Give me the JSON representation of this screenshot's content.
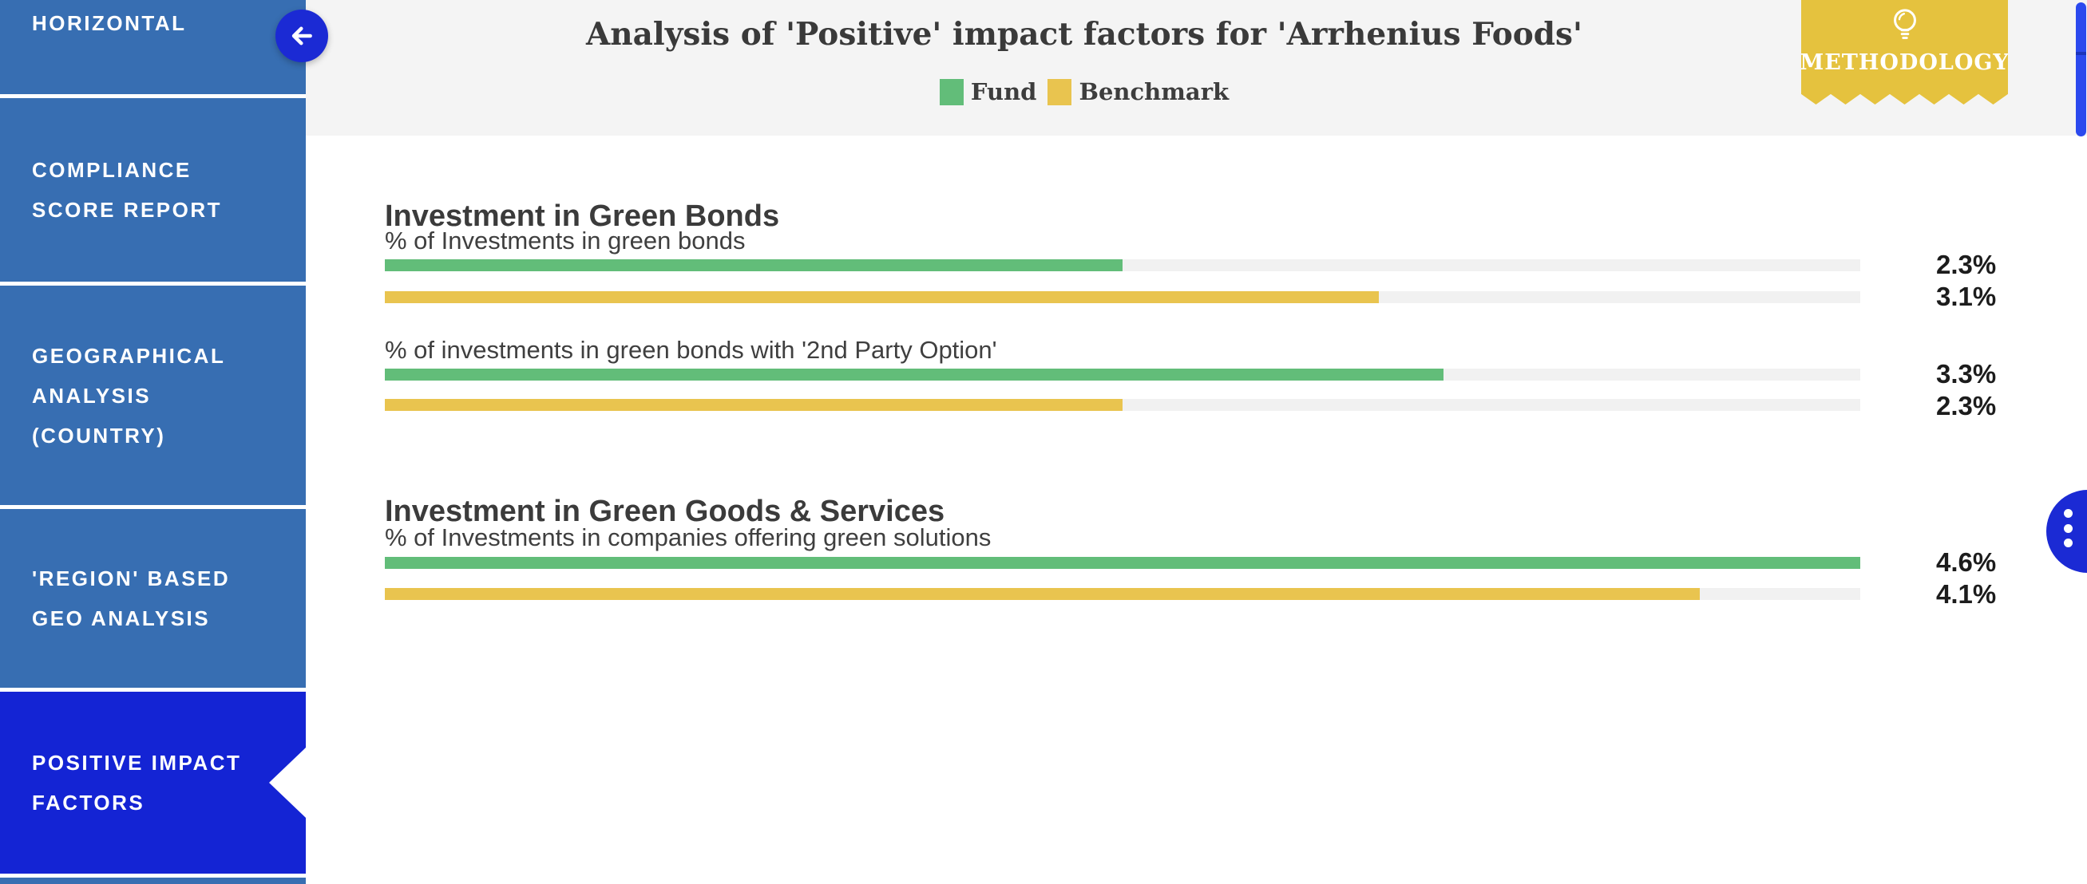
{
  "sidebar": {
    "items": [
      {
        "label": "HORIZONTAL",
        "active": false
      },
      {
        "label": "COMPLIANCE\nSCORE REPORT",
        "active": false
      },
      {
        "label": "GEOGRAPHICAL\nANALYSIS\n(COUNTRY)",
        "active": false
      },
      {
        "label": "'REGION' BASED\nGEO ANALYSIS",
        "active": false
      },
      {
        "label": "POSITIVE IMPACT\nFACTORS",
        "active": true
      }
    ]
  },
  "header": {
    "title": "Analysis of 'Positive' impact factors for 'Arrhenius Foods'",
    "legend": {
      "fund_label": "Fund",
      "benchmark_label": "Benchmark"
    },
    "methodology_label": "METHODOLOGY"
  },
  "chart_data": {
    "type": "bar",
    "orientation": "horizontal",
    "title": "Analysis of 'Positive' impact factors for 'Arrhenius Foods'",
    "series": [
      "Fund",
      "Benchmark"
    ],
    "unit": "%",
    "axis_max": 4.6,
    "colors": {
      "fund": "#62bd79",
      "benchmark": "#e9c44f",
      "track": "#f1f1f1",
      "sidebar_blue": "#376eb2",
      "active_blue": "#1424d4",
      "accent_blue": "#1b2ad4",
      "ribbon_yellow": "#e5c23e"
    },
    "groups": [
      {
        "heading": "Investment in Green Bonds",
        "metrics": [
          {
            "label": "% of Investments in green bonds",
            "fund": 2.3,
            "benchmark": 3.1,
            "fund_display": "2.3%",
            "benchmark_display": "3.1%"
          },
          {
            "label": "% of investments in green bonds with '2nd Party Option'",
            "fund": 3.3,
            "benchmark": 2.3,
            "fund_display": "3.3%",
            "benchmark_display": "2.3%"
          }
        ]
      },
      {
        "heading": "Investment in Green Goods & Services",
        "metrics": [
          {
            "label": "% of Investments in companies offering green solutions",
            "fund": 4.6,
            "benchmark": 4.1,
            "fund_display": "4.6%",
            "benchmark_display": "4.1%"
          }
        ]
      }
    ]
  }
}
